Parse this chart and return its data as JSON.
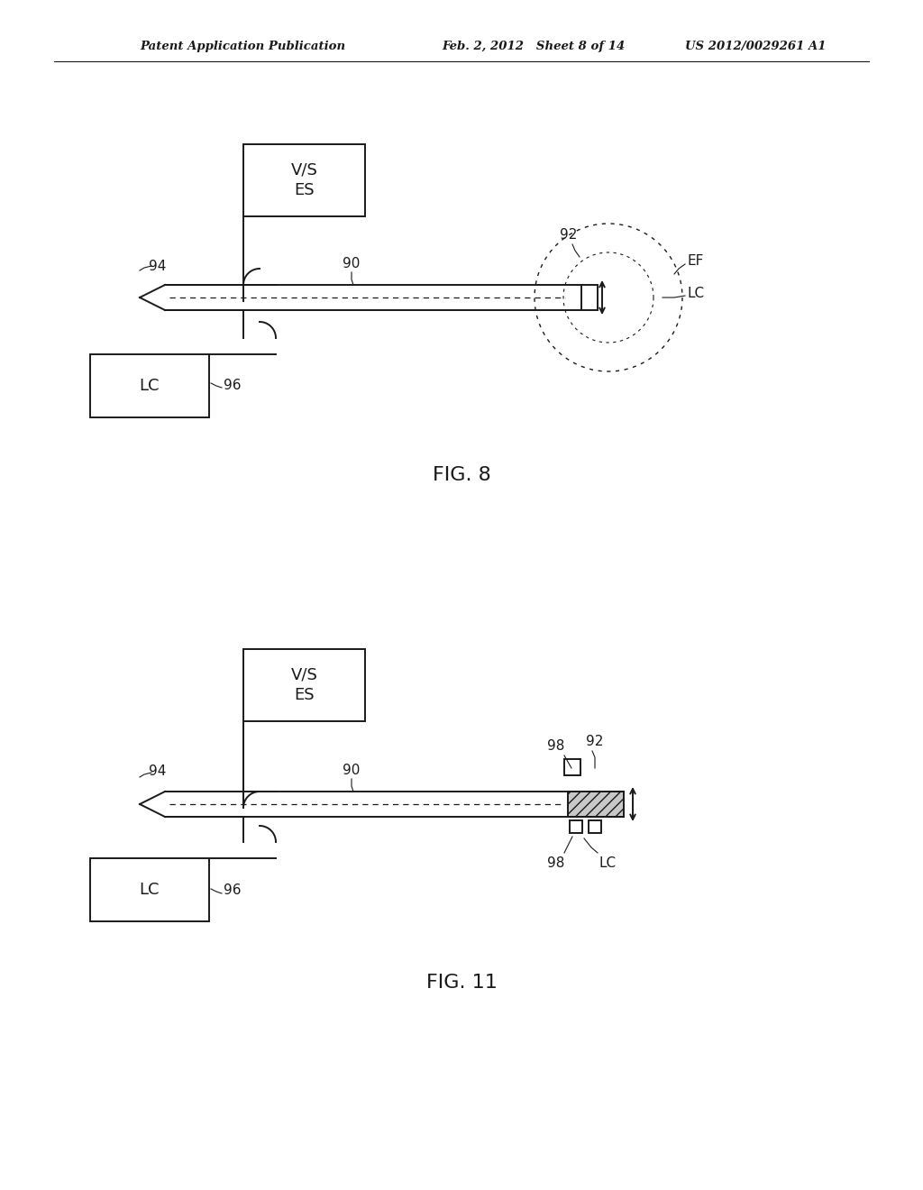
{
  "bg_color": "#ffffff",
  "line_color": "#1a1a1a",
  "header_left": "Patent Application Publication",
  "header_mid": "Feb. 2, 2012   Sheet 8 of 14",
  "header_right": "US 2012/0029261 A1",
  "fig8_caption": "FIG. 8",
  "fig11_caption": "FIG. 11"
}
